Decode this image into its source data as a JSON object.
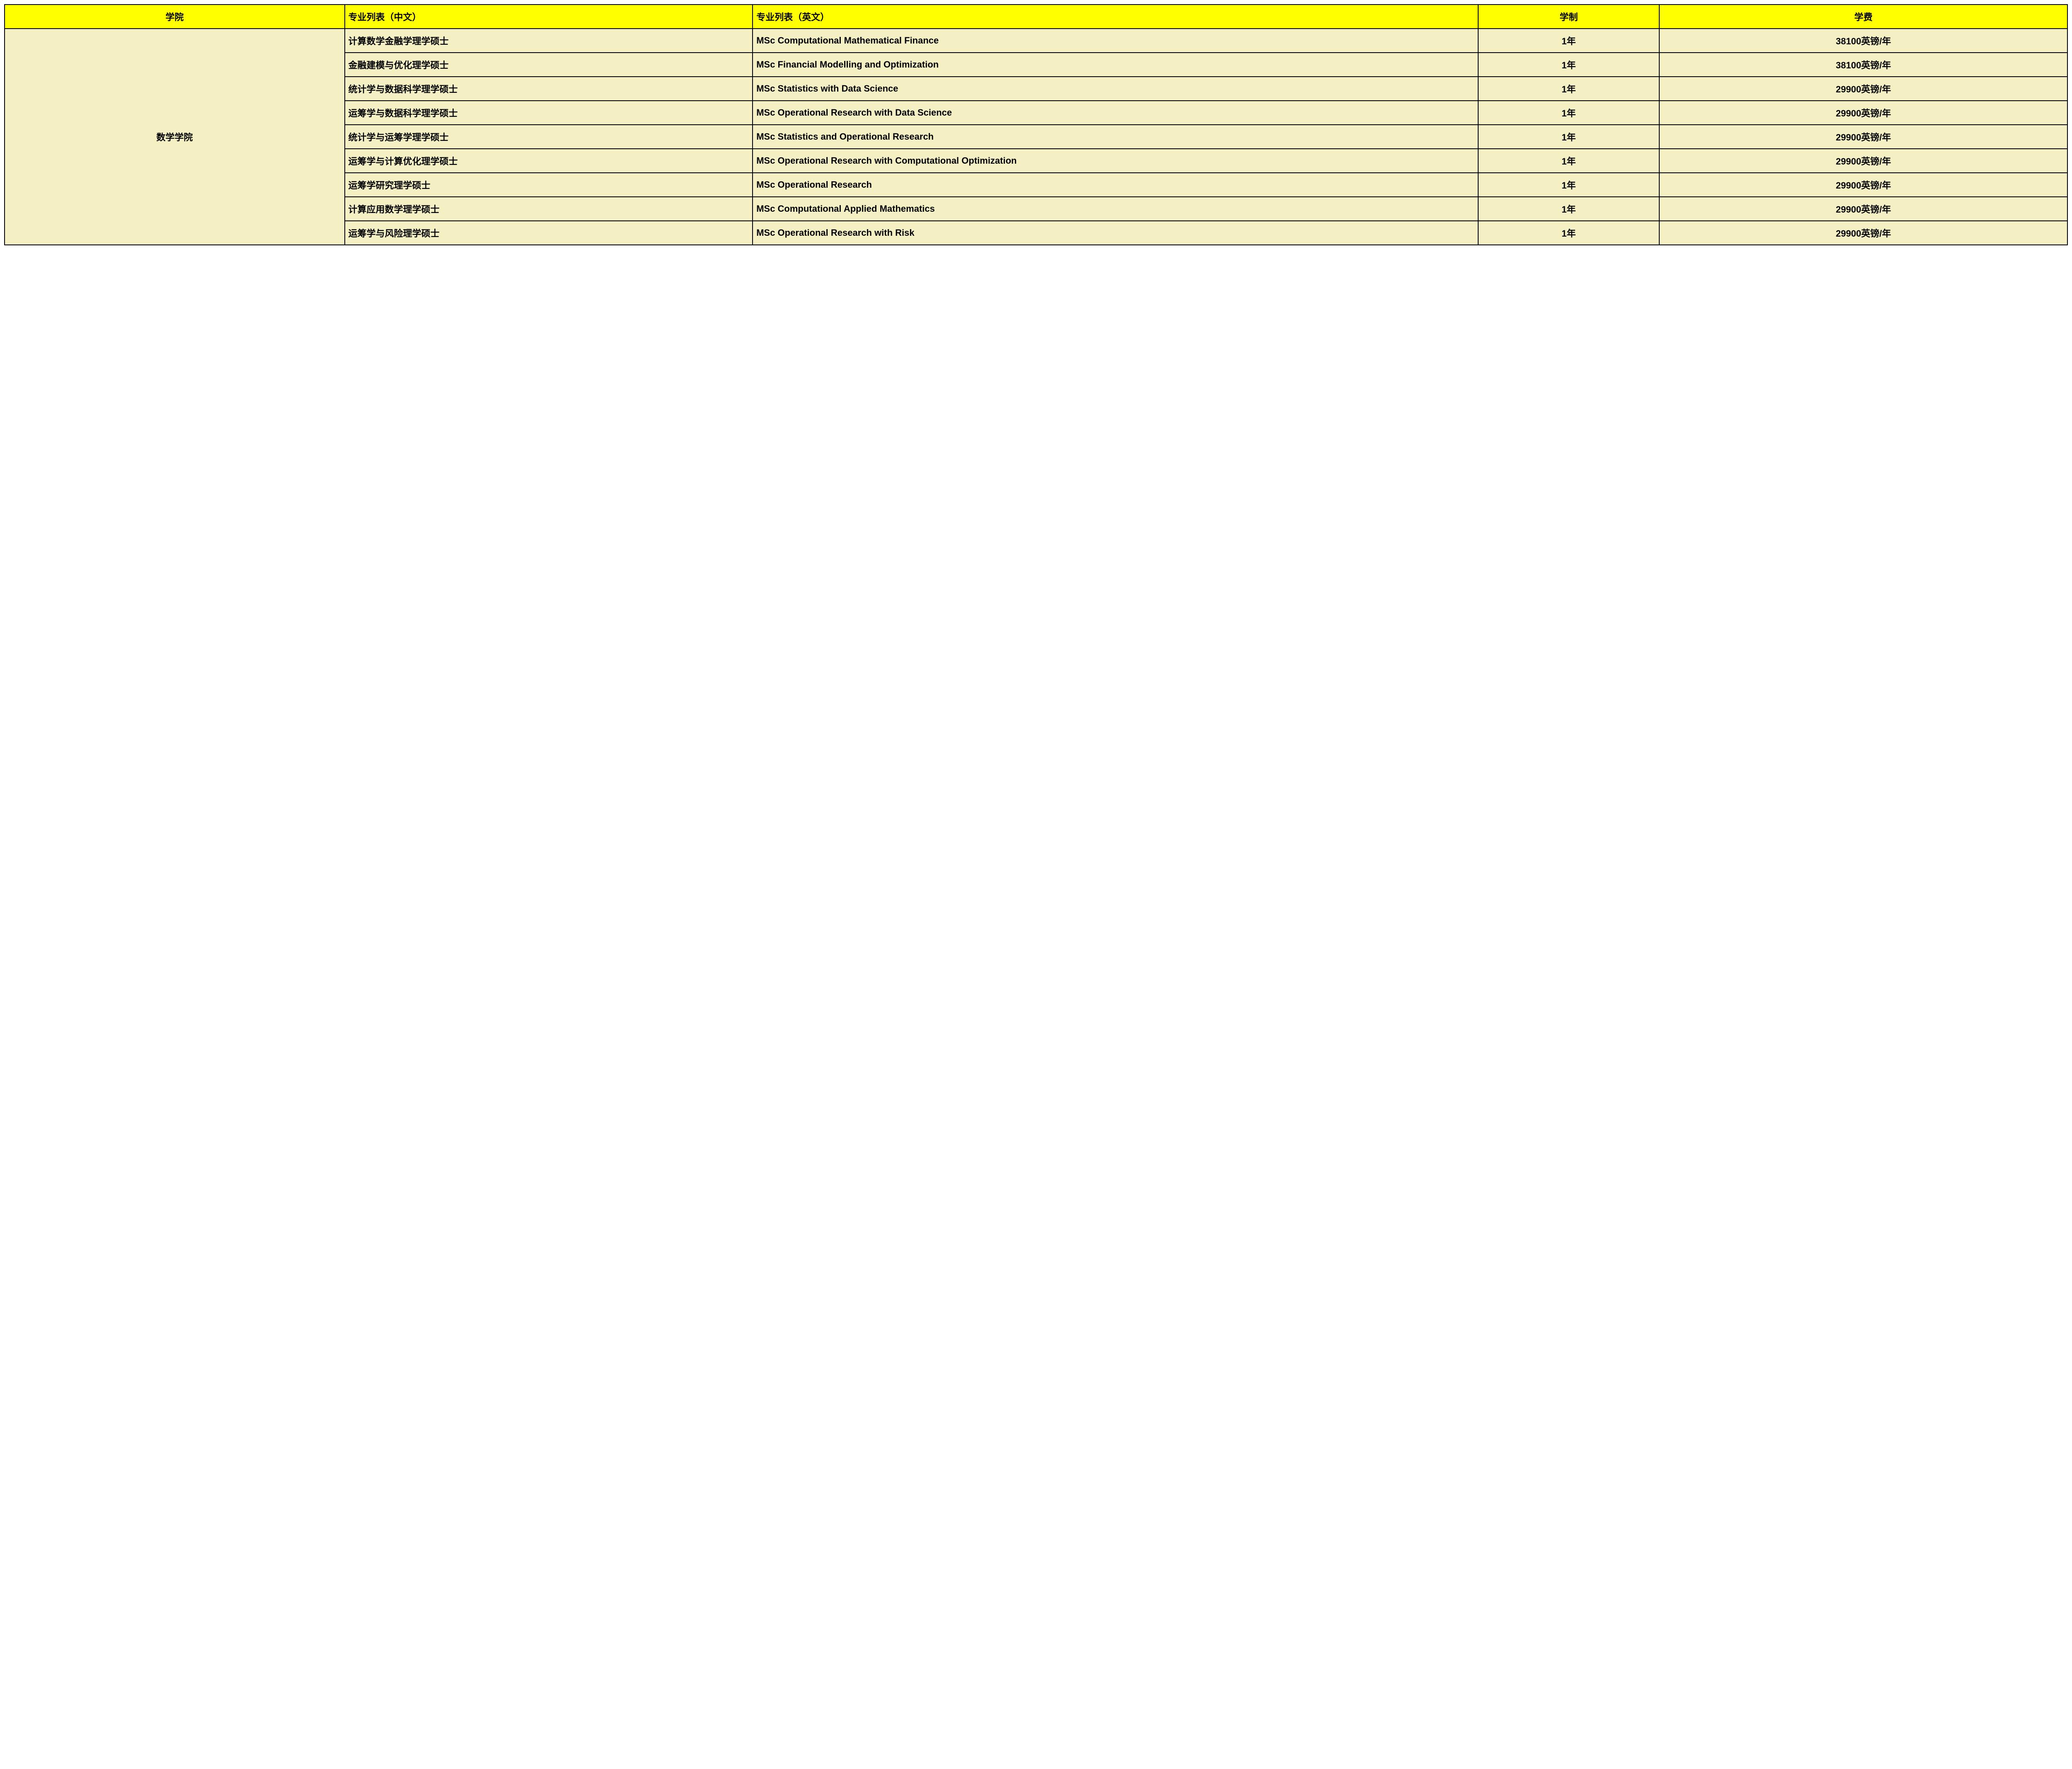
{
  "table": {
    "header_bg_color": "#ffff00",
    "body_bg_color": "#f4f0c4",
    "border_color": "#000000",
    "text_color": "#000000",
    "columns": [
      {
        "label": "学院"
      },
      {
        "label": "专业列表（中文）"
      },
      {
        "label": "专业列表（英文）"
      },
      {
        "label": "学制"
      },
      {
        "label": "学费"
      }
    ],
    "school": "数学学院",
    "rows": [
      {
        "cn": "计算数学金融学理学硕士",
        "en": "MSc Computational Mathematical Finance",
        "duration": "1年",
        "fee": "38100英镑/年"
      },
      {
        "cn": "金融建模与优化理学硕士",
        "en": "MSc Financial Modelling and Optimization",
        "duration": "1年",
        "fee": "38100英镑/年"
      },
      {
        "cn": "统计学与数据科学理学硕士",
        "en": "MSc Statistics with Data Science",
        "duration": "1年",
        "fee": "29900英镑/年"
      },
      {
        "cn": "运筹学与数据科学理学硕士",
        "en": "MSc Operational Research with Data Science",
        "duration": "1年",
        "fee": "29900英镑/年"
      },
      {
        "cn": "统计学与运筹学理学硕士",
        "en": "MSc Statistics and Operational Research",
        "duration": "1年",
        "fee": "29900英镑/年"
      },
      {
        "cn": "运筹学与计算优化理学硕士",
        "en": "MSc Operational Research with Computational Optimization",
        "duration": "1年",
        "fee": "29900英镑/年"
      },
      {
        "cn": "运筹学研究理学硕士",
        "en": "MSc Operational Research",
        "duration": "1年",
        "fee": "29900英镑/年"
      },
      {
        "cn": "计算应用数学理学硕士",
        "en": "MSc Computational Applied Mathematics",
        "duration": "1年",
        "fee": "29900英镑/年"
      },
      {
        "cn": "运筹学与风险理学硕士",
        "en": "MSc Operational Research with Risk",
        "duration": "1年",
        "fee": "29900英镑/年"
      }
    ]
  }
}
